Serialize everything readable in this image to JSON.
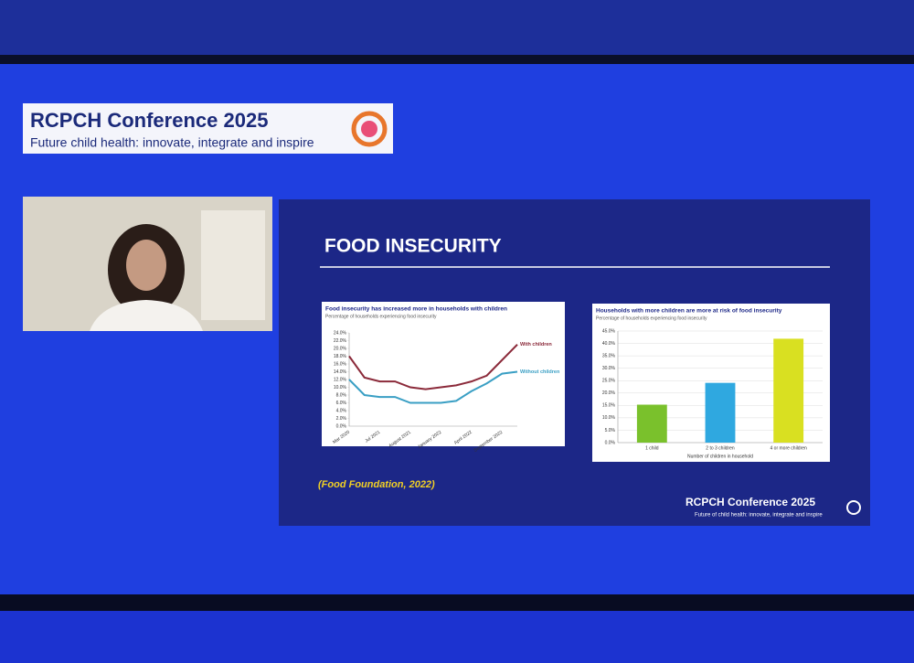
{
  "header": {
    "logo": "RCPCH Conference 2025",
    "tagline": "Future child health: innovate, integrate and inspire"
  },
  "slide": {
    "title": "FOOD INSECURITY",
    "citation": "(Food Foundation, 2022)",
    "footer_logo": "RCPCH Conference 2025",
    "footer_tagline": "Future of child health: innovate, integrate and inspire"
  },
  "chart_data": [
    {
      "type": "line",
      "title": "Food insecurity has increased more in households with children",
      "subtitle": "Percentage of households experiencing food insecurity",
      "categories": [
        "Mar 2020",
        null,
        "Jul 2021",
        null,
        "August 2021",
        null,
        "January 2022",
        null,
        "April 2022",
        null,
        "September 2022",
        null
      ],
      "series": [
        {
          "name": "With children",
          "color": "#8b2a3a",
          "values": [
            18,
            12.5,
            11.5,
            11.5,
            10,
            9.5,
            10,
            10.5,
            11.5,
            13,
            17,
            21
          ]
        },
        {
          "name": "Without children",
          "color": "#3a9fc4",
          "values": [
            12,
            8,
            7.5,
            7.5,
            6,
            6,
            6,
            6.5,
            9,
            11,
            13.5,
            14
          ]
        }
      ],
      "ylim": [
        0,
        24
      ],
      "yticks": [
        {
          "value": 0,
          "label": "0.0%"
        },
        {
          "value": 2,
          "label": "2.0%"
        },
        {
          "value": 4,
          "label": "4.0%"
        },
        {
          "value": 6,
          "label": "6.0%"
        },
        {
          "value": 8,
          "label": "8.0%"
        },
        {
          "value": 10,
          "label": "10.0%"
        },
        {
          "value": 12,
          "label": "12.0%"
        },
        {
          "value": 14,
          "label": "14.0%"
        },
        {
          "value": 16,
          "label": "16.0%"
        },
        {
          "value": 18,
          "label": "18.0%"
        },
        {
          "value": 20,
          "label": "20.0%"
        },
        {
          "value": 22,
          "label": "22.0%"
        },
        {
          "value": 24,
          "label": "24.0%"
        }
      ]
    },
    {
      "type": "bar",
      "title": "Households with more children are more at risk of food insecurity",
      "subtitle": "Percentage of households experiencing food insecurity",
      "x_label": "Number of children in household",
      "categories": [
        "1 child",
        "2 to 3 children",
        "4 or more children"
      ],
      "values": [
        15.3,
        24.1,
        41.9
      ],
      "colors": [
        "#7ac12c",
        "#2fa8e0",
        "#d9e021"
      ],
      "ylim": [
        0,
        45
      ],
      "yticks": [
        {
          "value": 0,
          "label": "0.0%"
        },
        {
          "value": 5,
          "label": "5.0%"
        },
        {
          "value": 10,
          "label": "10.0%"
        },
        {
          "value": 15,
          "label": "15.0%"
        },
        {
          "value": 20,
          "label": "20.0%"
        },
        {
          "value": 25,
          "label": "25.0%"
        },
        {
          "value": 30,
          "label": "30.0%"
        },
        {
          "value": 35,
          "label": "35.0%"
        },
        {
          "value": 40,
          "label": "40.0%"
        },
        {
          "value": 45,
          "label": "45.0%"
        }
      ],
      "grid": true
    }
  ]
}
